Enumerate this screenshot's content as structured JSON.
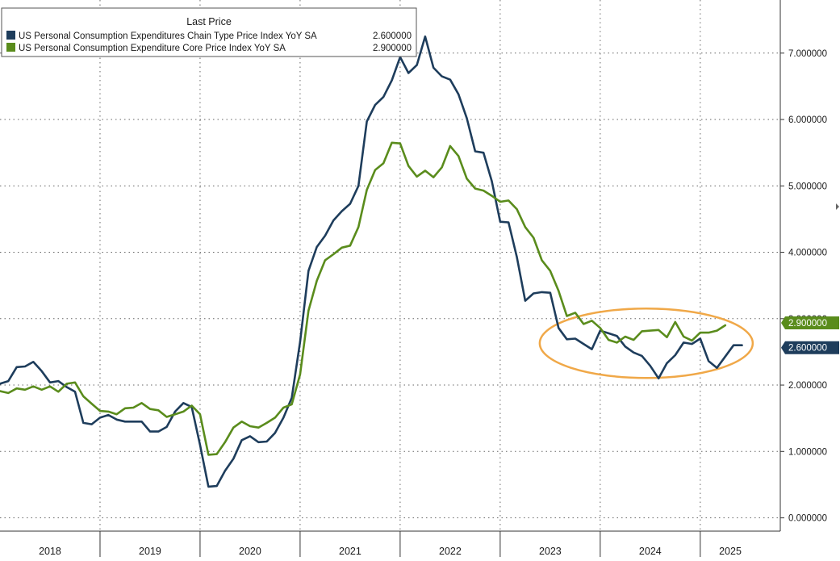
{
  "colors": {
    "pce": "#1e3d5c",
    "core": "#5a8c1c",
    "highlight": "#f0a848",
    "grid": "#666666",
    "axis": "#333333",
    "text": "#1a1a1a"
  },
  "legend": {
    "header": "Last Price",
    "entries": [
      {
        "label": "US Personal Consumption Expenditures Chain Type Price Index YoY SA",
        "value": "2.600000",
        "series": 0
      },
      {
        "label": "US Personal Consumption Expenditure Core Price Index YoY SA",
        "value": "2.900000",
        "series": 1
      }
    ]
  },
  "chart_data": {
    "type": "line",
    "ylim": [
      -0.2,
      7.8
    ],
    "y_ticks": [
      0,
      1,
      2,
      3,
      4,
      5,
      6,
      7
    ],
    "y_tick_labels": [
      "0.000000",
      "1.000000",
      "2.000000",
      "3.000000",
      "4.000000",
      "5.000000",
      "6.000000",
      "7.000000"
    ],
    "xlim": [
      2018.0,
      2025.8
    ],
    "x_tick_labels": [
      "2018",
      "2019",
      "2020",
      "2021",
      "2022",
      "2023",
      "2024",
      "2025"
    ],
    "x_label_positions": [
      2018.5,
      2019.5,
      2020.5,
      2021.5,
      2022.5,
      2023.5,
      2024.5,
      2025.3
    ],
    "grid": true,
    "legend_position": "top-left",
    "last_price_tags": [
      {
        "series": 1,
        "label": "2.900000",
        "value": 2.9
      },
      {
        "series": 0,
        "label": "2.600000",
        "value": 2.6
      }
    ],
    "series": [
      {
        "name": "US Personal Consumption Expenditures Chain Type Price Index YoY SA",
        "color": "#1e3d5c",
        "start": 2018.0,
        "step": 0.0833333,
        "values": [
          2.02,
          2.06,
          2.27,
          2.28,
          2.35,
          2.21,
          2.04,
          2.06,
          1.97,
          1.9,
          1.43,
          1.41,
          1.51,
          1.55,
          1.48,
          1.45,
          1.45,
          1.45,
          1.3,
          1.3,
          1.37,
          1.6,
          1.73,
          1.67,
          1.1,
          0.47,
          0.48,
          0.71,
          0.89,
          1.17,
          1.23,
          1.14,
          1.15,
          1.28,
          1.51,
          1.81,
          2.65,
          3.72,
          4.08,
          4.25,
          4.48,
          4.62,
          4.73,
          5.0,
          5.97,
          6.22,
          6.34,
          6.59,
          6.94,
          6.7,
          6.82,
          7.25,
          6.78,
          6.65,
          6.6,
          6.38,
          6.02,
          5.52,
          5.5,
          5.07,
          4.46,
          4.45,
          3.93,
          3.27,
          3.38,
          3.4,
          3.39,
          2.86,
          2.69,
          2.7,
          2.62,
          2.54,
          2.82,
          2.78,
          2.74,
          2.58,
          2.49,
          2.44,
          2.29,
          2.1,
          2.33,
          2.45,
          2.64,
          2.62,
          2.7,
          2.36,
          2.26,
          2.43,
          2.6,
          2.6
        ]
      },
      {
        "name": "US Personal Consumption Expenditure Core Price Index YoY SA",
        "color": "#5a8c1c",
        "start": 2018.0,
        "step": 0.0833333,
        "values": [
          1.91,
          1.88,
          1.95,
          1.93,
          1.98,
          1.93,
          1.98,
          1.9,
          2.02,
          2.04,
          1.83,
          1.72,
          1.61,
          1.6,
          1.56,
          1.65,
          1.66,
          1.73,
          1.64,
          1.62,
          1.52,
          1.56,
          1.6,
          1.69,
          1.56,
          0.95,
          0.96,
          1.14,
          1.36,
          1.45,
          1.38,
          1.36,
          1.43,
          1.51,
          1.66,
          1.71,
          2.16,
          3.12,
          3.57,
          3.88,
          3.97,
          4.07,
          4.1,
          4.38,
          4.94,
          5.24,
          5.34,
          5.65,
          5.64,
          5.3,
          5.14,
          5.23,
          5.13,
          5.28,
          5.6,
          5.45,
          5.11,
          4.96,
          4.93,
          4.85,
          4.76,
          4.78,
          4.65,
          4.38,
          4.22,
          3.88,
          3.72,
          3.42,
          3.04,
          3.09,
          2.92,
          2.97,
          2.86,
          2.68,
          2.64,
          2.73,
          2.68,
          2.81,
          2.82,
          2.83,
          2.72,
          2.95,
          2.73,
          2.67,
          2.79,
          2.79,
          2.82,
          2.9
        ]
      }
    ]
  }
}
